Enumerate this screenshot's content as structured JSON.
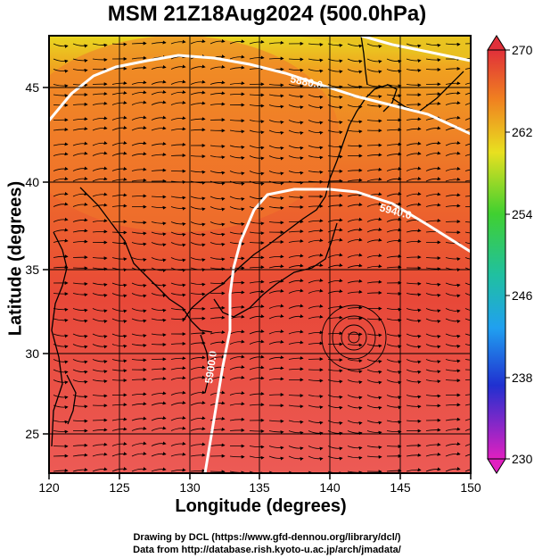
{
  "title": "MSM 21Z18Aug2024 (500.0hPa)",
  "x_axis": {
    "label": "Longitude (degrees)",
    "ticks": [
      "120",
      "125",
      "130",
      "135",
      "140",
      "145",
      "150"
    ]
  },
  "y_axis": {
    "label": "Latitude  (degrees)",
    "ticks": [
      "25",
      "30",
      "35",
      "40",
      "45"
    ]
  },
  "colorbar": {
    "ticks": [
      "270",
      "262",
      "254",
      "246",
      "238",
      "230"
    ],
    "min": 230,
    "max": 270
  },
  "contours": [
    {
      "label": "5880.0"
    },
    {
      "label": "5940.0"
    },
    {
      "label": "5900.0"
    }
  ],
  "credits": {
    "line1": "Drawing by DCL (https://www.gfd-dennou.org/library/dcl/)",
    "line2": "Data from http://database.rish.kyoto-u.ac.jp/arch/jmadata/"
  },
  "colors": {
    "field_warm": "#e8403a",
    "field_mid": "#f07a20",
    "field_cool": "#e8d820"
  }
}
